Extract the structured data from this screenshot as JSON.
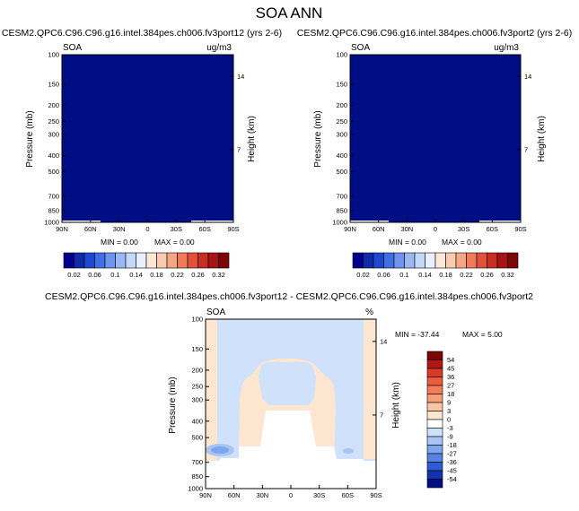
{
  "page_title": "SOA ANN",
  "colors": {
    "background": "#ffffff",
    "dark_blue": "#000e86",
    "light_blue": "#cfe1fb",
    "peach": "#fde6d0",
    "white_region": "#ffffff",
    "mid_blue": "#7ea6ee",
    "axis": "#000000"
  },
  "chart_data": [
    {
      "type": "heatmap",
      "panel": "top-left",
      "title": "CESM2.QPC6.C96.C96.g16.intel.384pes.ch006.fv3port12 (yrs 2-6)",
      "variable_label": "SOA",
      "units_label": "ug/m3",
      "xlabel": "",
      "ylabel": "Pressure (mb)",
      "ylabel_right": "Height (km)",
      "x_ticks": [
        "90N",
        "60N",
        "30N",
        "0",
        "30S",
        "60S",
        "90S"
      ],
      "y_ticks": [
        "100",
        "150",
        "200",
        "250",
        "300",
        "400",
        "500",
        "700",
        "850",
        "1000"
      ],
      "y_ticks_right": [
        "14",
        "7"
      ],
      "min_label": "MIN =  0.00",
      "max_label": "MAX =  0.00",
      "fill_value": 0.0,
      "colorbar": {
        "orientation": "horizontal",
        "labels": [
          "0.02",
          "0.06",
          "0.1",
          "0.14",
          "0.18",
          "0.22",
          "0.26",
          "0.32"
        ],
        "colors": [
          "#00008c",
          "#0f2aaa",
          "#1f48d2",
          "#3f6ee6",
          "#6e94ee",
          "#9bb8f4",
          "#c6d8fa",
          "#e8f0fd",
          "#fde8d8",
          "#fbcbb0",
          "#f6a585",
          "#f07b5a",
          "#e2503a",
          "#c92e22",
          "#a81414",
          "#7d0606"
        ]
      }
    },
    {
      "type": "heatmap",
      "panel": "top-right",
      "title": "CESM2.QPC6.C96.C96.g16.intel.384pes.ch006.fv3port2 (yrs 2-6)",
      "variable_label": "SOA",
      "units_label": "ug/m3",
      "xlabel": "",
      "ylabel": "Pressure (mb)",
      "ylabel_right": "Height (km)",
      "x_ticks": [
        "90N",
        "60N",
        "30N",
        "0",
        "30S",
        "60S",
        "90S"
      ],
      "y_ticks": [
        "100",
        "150",
        "200",
        "250",
        "300",
        "400",
        "500",
        "700",
        "850",
        "1000"
      ],
      "y_ticks_right": [
        "14",
        "7"
      ],
      "min_label": "MIN =  0.00",
      "max_label": "MAX =  0.00",
      "fill_value": 0.0,
      "colorbar": {
        "orientation": "horizontal",
        "labels": [
          "0.02",
          "0.06",
          "0.1",
          "0.14",
          "0.18",
          "0.22",
          "0.26",
          "0.32"
        ],
        "colors": [
          "#00008c",
          "#0f2aaa",
          "#1f48d2",
          "#3f6ee6",
          "#6e94ee",
          "#9bb8f4",
          "#c6d8fa",
          "#e8f0fd",
          "#fde8d8",
          "#fbcbb0",
          "#f6a585",
          "#f07b5a",
          "#e2503a",
          "#c92e22",
          "#a81414",
          "#7d0606"
        ]
      }
    },
    {
      "type": "heatmap",
      "panel": "bottom-difference",
      "title": "CESM2.QPC6.C96.C96.g16.intel.384pes.ch006.fv3port12 - CESM2.QPC6.C96.C96.g16.intel.384pes.ch006.fv3port2",
      "variable_label": "SOA",
      "units_label": "%",
      "xlabel": "",
      "ylabel": "Pressure (mb)",
      "ylabel_right": "Height (km)",
      "x_ticks": [
        "90N",
        "60N",
        "30N",
        "0",
        "30S",
        "60S",
        "90S"
      ],
      "y_ticks": [
        "100",
        "150",
        "200",
        "250",
        "300",
        "400",
        "500",
        "700",
        "850",
        "1000"
      ],
      "y_ticks_right": [
        "14",
        "7"
      ],
      "min_label": "MIN = -37.44",
      "max_label": "MAX =   5.00",
      "colorbar": {
        "orientation": "vertical",
        "labels": [
          "54",
          "45",
          "36",
          "27",
          "18",
          "9",
          "3",
          "0",
          "-3",
          "-9",
          "-18",
          "-27",
          "-36",
          "-45",
          "-54"
        ],
        "colors": [
          "#7d0606",
          "#b01818",
          "#d83a28",
          "#ee5a3c",
          "#f47c58",
          "#f79e78",
          "#fbc4a4",
          "#fde6d0",
          "#ffffff",
          "#cfe1fb",
          "#a9c5f4",
          "#7ea6ee",
          "#5583e4",
          "#2f5cd6",
          "#1232b0",
          "#000e86"
        ]
      },
      "regions": [
        {
          "name": "positive band (0 to 3 %)",
          "lat_range": [
            "90N",
            "77N"
          ],
          "p_range_mb": [
            100,
            700
          ],
          "color_class": "0 to 3"
        },
        {
          "name": "positive band (0 to 3 %)",
          "lat_range": [
            "72S",
            "90S"
          ],
          "p_range_mb": [
            100,
            690
          ],
          "color_class": "0 to 3"
        },
        {
          "name": "tropical positive dome (0 to 3 %)",
          "lat_range": [
            "44N",
            "26S"
          ],
          "p_range_mb": [
            200,
            560
          ],
          "color_class": "0 to 3"
        },
        {
          "name": "negative background (-3 to 0 %)",
          "lat_range": [
            "77N",
            "72S"
          ],
          "p_range_mb": [
            100,
            700
          ],
          "color_class": "-3 to 0"
        },
        {
          "name": "low-level negative patch",
          "lat_range": [
            "90N",
            "63N"
          ],
          "p_range_mb": [
            540,
            650
          ],
          "color_class": "-18 to -9"
        },
        {
          "name": "undefined (below surface)",
          "lat_range": [
            "90N",
            "90S"
          ],
          "p_range_mb": [
            700,
            1000
          ],
          "color_class": "blank"
        }
      ]
    }
  ]
}
